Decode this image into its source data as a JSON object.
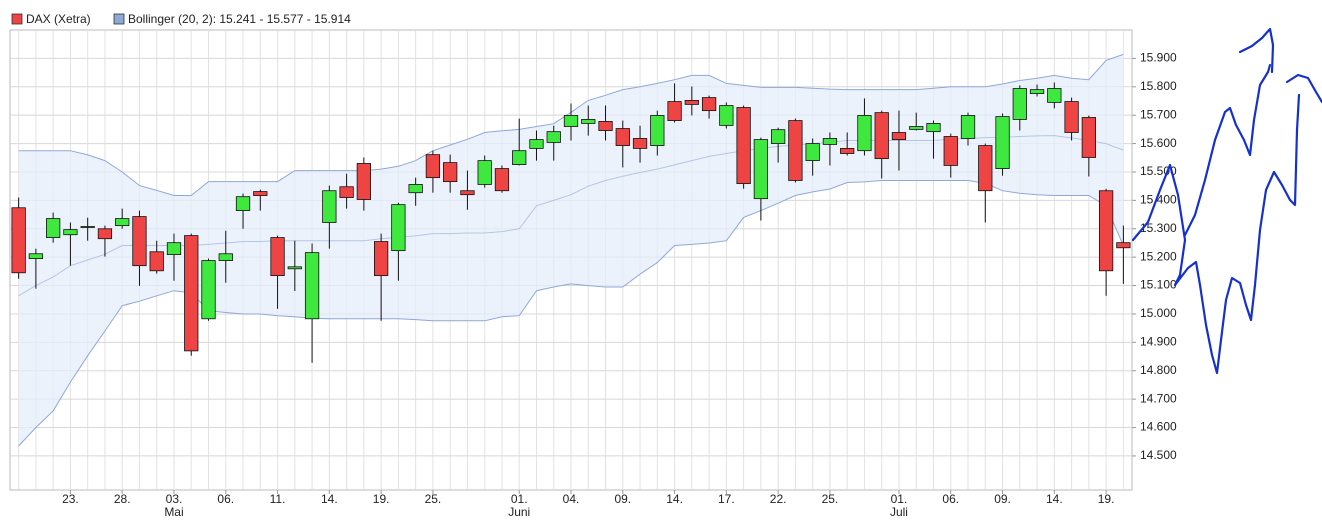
{
  "chart_data": {
    "type": "candlestick",
    "name": "DAX (Xetra)",
    "up_color": "#3fe83f",
    "down_color": "#ee4444",
    "categories": [
      null,
      null,
      null,
      "23.",
      null,
      null,
      "28.",
      null,
      null,
      "03.",
      null,
      null,
      "06.",
      null,
      null,
      "11.",
      null,
      null,
      "14.",
      null,
      null,
      "19.",
      null,
      null,
      "25.",
      null,
      null,
      null,
      null,
      "01.",
      null,
      null,
      "04.",
      null,
      null,
      "09.",
      null,
      null,
      "14.",
      null,
      null,
      "17.",
      null,
      null,
      "22.",
      null,
      null,
      "25.",
      null,
      null,
      null,
      "01.",
      null,
      null,
      "06.",
      null,
      null,
      "09.",
      null,
      null,
      "14.",
      null,
      null,
      "19.",
      null
    ],
    "months": [
      null,
      null,
      null,
      null,
      null,
      null,
      null,
      null,
      null,
      "Mai",
      null,
      null,
      null,
      null,
      null,
      null,
      null,
      null,
      null,
      null,
      null,
      null,
      null,
      null,
      null,
      null,
      null,
      null,
      null,
      "Juni",
      null,
      null,
      null,
      null,
      null,
      null,
      null,
      null,
      null,
      null,
      null,
      null,
      null,
      null,
      null,
      null,
      null,
      null,
      null,
      null,
      null,
      "Juli",
      null,
      null,
      null,
      null,
      null,
      null,
      null,
      null,
      null,
      null,
      null,
      null,
      null
    ],
    "open": [
      15374,
      15195,
      15269,
      15279,
      15305,
      15300,
      15311,
      15343,
      15219,
      15209,
      15276,
      14983,
      15188,
      15364,
      15431,
      15269,
      15159,
      14983,
      15322,
      15448,
      15530,
      15255,
      15223,
      15427,
      15561,
      15533,
      15434,
      15456,
      15512,
      15526,
      15583,
      15604,
      15660,
      15671,
      15678,
      15653,
      15618,
      15593,
      15748,
      15752,
      15762,
      15664,
      15727,
      15406,
      15600,
      15681,
      15540,
      15597,
      15583,
      15575,
      15709,
      15639,
      15650,
      15642,
      15625,
      15618,
      15593,
      15512,
      15685,
      15776,
      15745,
      15748,
      15692,
      15434,
      15251
    ],
    "high": [
      15410,
      15230,
      15357,
      15322,
      15339,
      15311,
      15371,
      15364,
      15258,
      15283,
      15283,
      15195,
      15293,
      15424,
      15438,
      15276,
      15258,
      15248,
      15452,
      15494,
      15551,
      15283,
      15392,
      15480,
      15575,
      15561,
      15505,
      15558,
      15523,
      15688,
      15646,
      15663,
      15741,
      15734,
      15734,
      15681,
      15663,
      15716,
      15812,
      15801,
      15769,
      15745,
      15734,
      15621,
      15656,
      15688,
      15618,
      15639,
      15639,
      15759,
      15716,
      15716,
      15709,
      15681,
      15635,
      15709,
      15600,
      15706,
      15805,
      15808,
      15815,
      15762,
      15699,
      15441,
      15311
    ],
    "low": [
      15124,
      15089,
      15251,
      15170,
      15258,
      15202,
      15300,
      15099,
      15142,
      15117,
      14853,
      14976,
      15110,
      15300,
      15364,
      15018,
      15081,
      14828,
      15230,
      15371,
      15364,
      14976,
      15117,
      15381,
      15427,
      15427,
      15367,
      15445,
      15427,
      15523,
      15540,
      15540,
      15611,
      15628,
      15611,
      15516,
      15533,
      15558,
      15674,
      15699,
      15688,
      15653,
      15441,
      15329,
      15533,
      15463,
      15487,
      15523,
      15558,
      15558,
      15477,
      15505,
      15646,
      15547,
      15480,
      15593,
      15322,
      15487,
      15646,
      15766,
      15724,
      15611,
      15484,
      15064,
      15106
    ],
    "close": [
      15145,
      15212,
      15336,
      15297,
      15308,
      15265,
      15336,
      15170,
      15152,
      15251,
      14870,
      15188,
      15212,
      15413,
      15417,
      15135,
      15166,
      15216,
      15434,
      15410,
      15403,
      15135,
      15385,
      15456,
      15480,
      15466,
      15420,
      15540,
      15434,
      15575,
      15614,
      15642,
      15699,
      15685,
      15646,
      15593,
      15583,
      15699,
      15681,
      15738,
      15716,
      15734,
      15459,
      15614,
      15649,
      15470,
      15600,
      15618,
      15565,
      15699,
      15547,
      15614,
      15660,
      15671,
      15523,
      15699,
      15434,
      15695,
      15794,
      15790,
      15794,
      15639,
      15551,
      15152,
      15233
    ],
    "bands": {
      "name": "Bollinger (20, 2): 15.241 - 15.577 - 15.914",
      "color": "#8fa8d8",
      "fill": "#e6eefb",
      "upper": [
        15575,
        15575,
        15575,
        15575,
        15560,
        15540,
        15500,
        15452,
        15435,
        15417,
        15417,
        15466,
        15466,
        15466,
        15466,
        15466,
        15505,
        15505,
        15505,
        15505,
        15505,
        15510,
        15520,
        15540,
        15575,
        15595,
        15615,
        15639,
        15645,
        15650,
        15660,
        15670,
        15710,
        15752,
        15770,
        15790,
        15800,
        15812,
        15825,
        15840,
        15840,
        15812,
        15805,
        15798,
        15798,
        15798,
        15795,
        15792,
        15790,
        15790,
        15790,
        15790,
        15790,
        15795,
        15800,
        15800,
        15800,
        15810,
        15822,
        15830,
        15840,
        15830,
        15825,
        15893,
        15914
      ],
      "middle": [
        15064,
        15100,
        15130,
        15170,
        15190,
        15210,
        15241,
        15241,
        15241,
        15241,
        15241,
        15245,
        15250,
        15255,
        15255,
        15258,
        15258,
        15258,
        15258,
        15258,
        15258,
        15265,
        15270,
        15275,
        15283,
        15283,
        15285,
        15285,
        15290,
        15300,
        15381,
        15400,
        15420,
        15450,
        15470,
        15485,
        15498,
        15510,
        15525,
        15540,
        15555,
        15565,
        15575,
        15583,
        15590,
        15595,
        15600,
        15605,
        15611,
        15611,
        15611,
        15611,
        15611,
        15611,
        15615,
        15618,
        15621,
        15622,
        15625,
        15627,
        15628,
        15620,
        15611,
        15600,
        15577
      ],
      "lower": [
        14535,
        14600,
        14659,
        14760,
        14853,
        14940,
        15029,
        15045,
        15064,
        15082,
        15075,
        15011,
        15005,
        15000,
        15000,
        14994,
        14990,
        14985,
        14983,
        14983,
        14983,
        14983,
        14983,
        14980,
        14976,
        14976,
        14976,
        14976,
        14990,
        14994,
        15082,
        15095,
        15106,
        15100,
        15095,
        15095,
        15140,
        15181,
        15241,
        15245,
        15250,
        15258,
        15340,
        15364,
        15390,
        15417,
        15430,
        15440,
        15463,
        15465,
        15470,
        15470,
        15470,
        15470,
        15470,
        15470,
        15460,
        15434,
        15425,
        15420,
        15417,
        15417,
        15417,
        15381,
        15241
      ]
    },
    "ylim": [
      14380,
      16000
    ],
    "yticks": [
      {
        "value": 14500,
        "label": "14.500"
      },
      {
        "value": 14600,
        "label": "14.600"
      },
      {
        "value": 14700,
        "label": "14.700"
      },
      {
        "value": 14800,
        "label": "14.800"
      },
      {
        "value": 14900,
        "label": "14.900"
      },
      {
        "value": 15000,
        "label": "15.000"
      },
      {
        "value": 15100,
        "label": "15.100"
      },
      {
        "value": 15200,
        "label": "15.200"
      },
      {
        "value": 15300,
        "label": "15.300"
      },
      {
        "value": 15400,
        "label": "15.400"
      },
      {
        "value": 15500,
        "label": "15.500"
      },
      {
        "value": 15600,
        "label": "15.600"
      },
      {
        "value": 15700,
        "label": "15.700"
      },
      {
        "value": 15800,
        "label": "15.800"
      },
      {
        "value": 15900,
        "label": "15.900"
      }
    ],
    "grid": true
  }
}
